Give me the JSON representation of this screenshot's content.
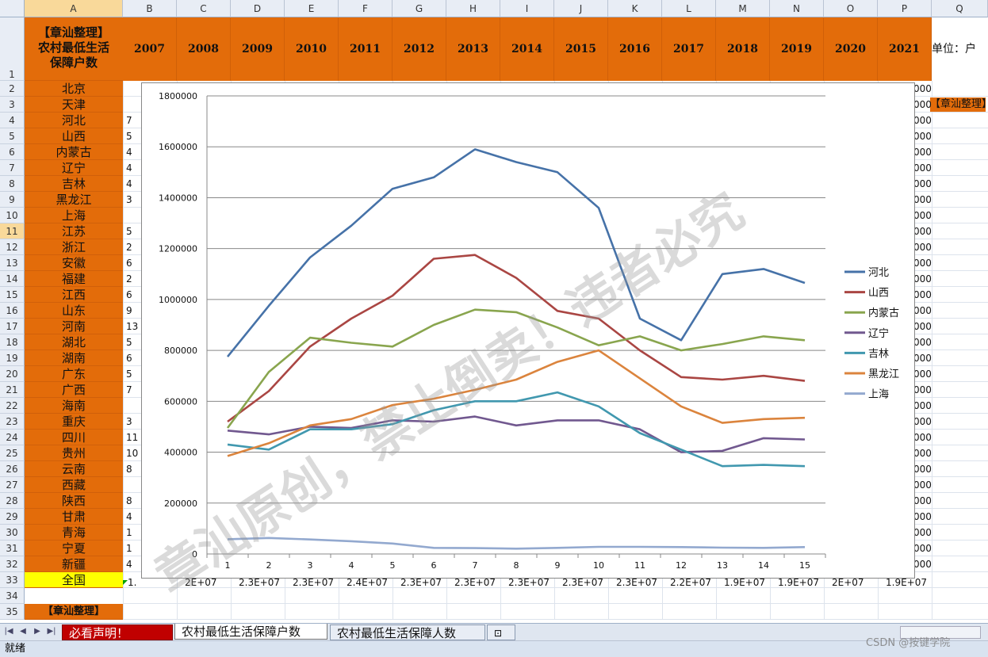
{
  "columns": [
    "A",
    "B",
    "C",
    "D",
    "E",
    "F",
    "G",
    "H",
    "I",
    "J",
    "K",
    "L",
    "M",
    "N",
    "O",
    "P",
    "Q"
  ],
  "header_cell_title": [
    "【章汕整理】",
    "农村最低生活",
    "保障户数"
  ],
  "years": [
    "2007",
    "2008",
    "2009",
    "2010",
    "2011",
    "2012",
    "2013",
    "2014",
    "2015",
    "2016",
    "2017",
    "2018",
    "2019",
    "2020",
    "2021"
  ],
  "unit_label": "单位：户",
  "side_tag": "【章汕整理】",
  "rows": [
    "北京",
    "天津",
    "河北",
    "山西",
    "内蒙古",
    "辽宁",
    "吉林",
    "黑龙江",
    "上海",
    "江苏",
    "浙江",
    "安徽",
    "福建",
    "江西",
    "山东",
    "河南",
    "湖北",
    "湖南",
    "广东",
    "广西",
    "海南",
    "重庆",
    "四川",
    "贵州",
    "云南",
    "西藏",
    "陕西",
    "甘肃",
    "青海",
    "宁夏",
    "新疆",
    "全国"
  ],
  "row_numbers": [
    "1",
    "2",
    "3",
    "4",
    "5",
    "6",
    "7",
    "8",
    "9",
    "10",
    "11",
    "12",
    "13",
    "14",
    "15",
    "16",
    "17",
    "18",
    "19",
    "20",
    "21",
    "22",
    "23",
    "24",
    "25",
    "26",
    "27",
    "28",
    "29",
    "30",
    "31",
    "32",
    "33",
    "34",
    "35"
  ],
  "partial_b_values": {
    "4": "7",
    "5": "5",
    "6": "4",
    "7": "4",
    "8": "4",
    "9": "3",
    "11": "5",
    "12": "2",
    "13": "6",
    "14": "2",
    "15": "6",
    "16": "9",
    "17": "13",
    "18": "5",
    "19": "6",
    "20": "5",
    "21": "7",
    "23": "3",
    "24": "11",
    "25": "10",
    "26": "8",
    "28": "8",
    "29": "4",
    "30": "1",
    "31": "1",
    "32": "4"
  },
  "right_edge_values": "000",
  "row33_fragments": [
    "1.",
    "2E+07",
    "2.3E+07",
    "2.3E+07",
    "2.4E+07",
    "2.3E+07",
    "2.3E+07",
    "2.3E+07",
    "2.3E+07",
    "2.3E+07",
    "2.2E+07",
    "1.9E+07",
    "1.9E+07",
    "2E+07",
    "1.9E+07"
  ],
  "row35_label": "【章汕整理】",
  "tabs": [
    "必看声明！",
    "农村最低生活保障户数",
    "农村最低生活保障人数"
  ],
  "status": "就绪",
  "watermark_text": "章汕原创，禁止倒卖！违者必究",
  "csdn_mark": "CSDN @按键学院",
  "colors": {
    "header_orange": "#e36c0a",
    "selected_yellow": "#ffff00",
    "tab_red": "#c00000"
  },
  "chart_data": {
    "type": "line",
    "x": [
      1,
      2,
      3,
      4,
      5,
      6,
      7,
      8,
      9,
      10,
      11,
      12,
      13,
      14,
      15
    ],
    "ylim": [
      0,
      1800000
    ],
    "yticks": [
      "0",
      "200000",
      "400000",
      "600000",
      "800000",
      "1000000",
      "1200000",
      "1400000",
      "1600000",
      "1800000"
    ],
    "grid": true,
    "legend": "right",
    "series": [
      {
        "name": "河北",
        "color": "#4672a8",
        "values": [
          775000,
          975000,
          1165000,
          1290000,
          1435000,
          1480000,
          1590000,
          1540000,
          1500000,
          1360000,
          925000,
          840000,
          1100000,
          1120000,
          1065000
        ]
      },
      {
        "name": "山西",
        "color": "#aa4643",
        "values": [
          520000,
          640000,
          815000,
          925000,
          1015000,
          1160000,
          1175000,
          1085000,
          955000,
          925000,
          800000,
          695000,
          685000,
          700000,
          680000
        ]
      },
      {
        "name": "内蒙古",
        "color": "#89a54e",
        "values": [
          495000,
          715000,
          850000,
          830000,
          815000,
          900000,
          960000,
          950000,
          890000,
          820000,
          855000,
          800000,
          825000,
          855000,
          840000
        ]
      },
      {
        "name": "辽宁",
        "color": "#71588f",
        "values": [
          485000,
          470000,
          500000,
          495000,
          525000,
          520000,
          540000,
          505000,
          525000,
          525000,
          490000,
          400000,
          405000,
          455000,
          450000
        ]
      },
      {
        "name": "吉林",
        "color": "#4198af",
        "values": [
          430000,
          410000,
          490000,
          490000,
          510000,
          565000,
          600000,
          600000,
          635000,
          580000,
          475000,
          410000,
          345000,
          350000,
          345000
        ]
      },
      {
        "name": "黑龙江",
        "color": "#db843d",
        "values": [
          385000,
          435000,
          505000,
          530000,
          585000,
          610000,
          645000,
          685000,
          755000,
          800000,
          690000,
          580000,
          515000,
          530000,
          535000
        ]
      },
      {
        "name": "上海",
        "color": "#93a9cf",
        "values": [
          58000,
          63000,
          57000,
          50000,
          41000,
          24000,
          23000,
          21000,
          24000,
          28000,
          28000,
          27000,
          25000,
          24000,
          27000
        ]
      }
    ]
  }
}
